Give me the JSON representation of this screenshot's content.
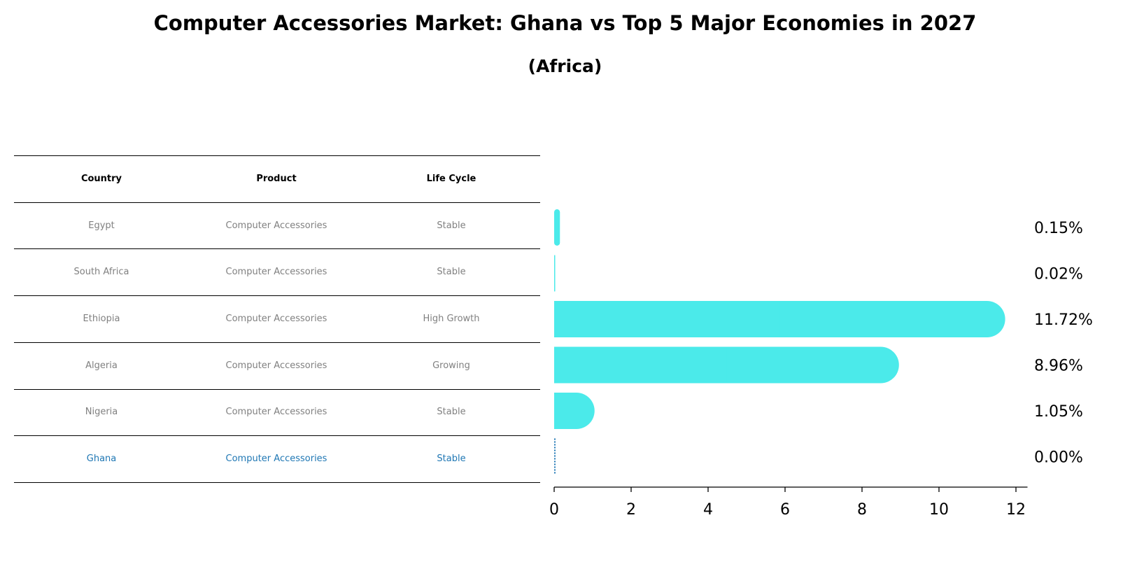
{
  "title": "Computer Accessories Market: Ghana vs Top 5 Major Economies in 2027",
  "subtitle": "(Africa)",
  "table": {
    "headers": [
      "Country",
      "Product",
      "Life Cycle"
    ],
    "rows": [
      [
        "Egypt",
        "Computer Accessories",
        "Stable"
      ],
      [
        "South Africa",
        "Computer Accessories",
        "Stable"
      ],
      [
        "Ethiopia",
        "Computer Accessories",
        "High Growth"
      ],
      [
        "Algeria",
        "Computer Accessories",
        "Growing"
      ],
      [
        "Nigeria",
        "Computer Accessories",
        "Stable"
      ],
      [
        "Ghana",
        "Computer Accessories",
        "Stable"
      ]
    ],
    "highlight_row": "Ghana",
    "highlight_color": "#1f77b4"
  },
  "chart_data": {
    "type": "bar",
    "orientation": "horizontal",
    "categories": [
      "Egypt",
      "South Africa",
      "Ethiopia",
      "Algeria",
      "Nigeria",
      "Ghana"
    ],
    "values": [
      0.15,
      0.02,
      11.72,
      8.96,
      1.05,
      0.0
    ],
    "value_labels": [
      "0.15%",
      "0.02%",
      "11.72%",
      "8.96%",
      "1.05%",
      "0.00%"
    ],
    "xlim": [
      0,
      12.3
    ],
    "xticks": [
      0,
      2,
      4,
      6,
      8,
      10,
      12
    ],
    "bar_color": "#4beaea",
    "highlight_color": "#1f77b4",
    "grid": false,
    "xlabel": "",
    "ylabel": ""
  }
}
